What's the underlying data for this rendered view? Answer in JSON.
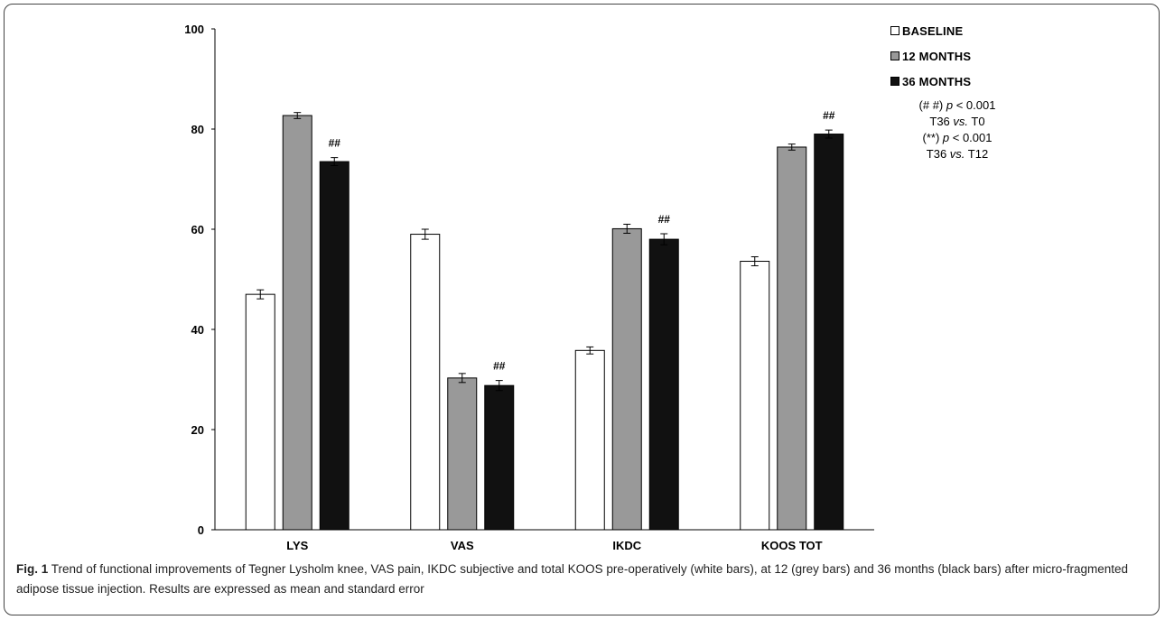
{
  "chart_data": {
    "type": "bar",
    "categories": [
      "LYS",
      "VAS",
      "IKDC",
      "KOOS TOT"
    ],
    "series": [
      {
        "name": "BASELINE",
        "color": "#ffffff",
        "values": [
          47.0,
          59.0,
          35.8,
          53.6
        ],
        "errors": [
          0.9,
          1.0,
          0.7,
          0.9
        ]
      },
      {
        "name": "12 MONTHS",
        "color": "#999999",
        "values": [
          82.7,
          30.3,
          60.1,
          76.4
        ],
        "errors": [
          0.6,
          0.9,
          0.9,
          0.6
        ]
      },
      {
        "name": "36 MONTHS",
        "color": "#111111",
        "values": [
          73.5,
          28.8,
          58.0,
          79.0
        ],
        "errors": [
          0.8,
          1.0,
          1.1,
          0.8
        ]
      }
    ],
    "significance": [
      {
        "category": "LYS",
        "series": "36 MONTHS",
        "label": "##"
      },
      {
        "category": "VAS",
        "series": "36 MONTHS",
        "label": "##"
      },
      {
        "category": "IKDC",
        "series": "36 MONTHS",
        "label": "##"
      },
      {
        "category": "KOOS TOT",
        "series": "36 MONTHS",
        "label": "##"
      }
    ],
    "ylim": [
      0,
      100
    ],
    "yticks": [
      0,
      20,
      40,
      60,
      80,
      100
    ],
    "grid": false,
    "legend_position": "top-right",
    "xlabel": "",
    "ylabel": ""
  },
  "legend": {
    "items": [
      {
        "label": "BASELINE",
        "color": "#ffffff"
      },
      {
        "label": "12 MONTHS",
        "color": "#999999"
      },
      {
        "label": "36 MONTHS",
        "color": "#111111"
      }
    ]
  },
  "notes": {
    "line1_prefix": "(# #) ",
    "line1_p": "p",
    "line1_suffix": " < 0.001",
    "line2_a": "T36 ",
    "line2_vs": "vs.",
    "line2_b": " T0",
    "line3_prefix": "(**) ",
    "line3_p": "p",
    "line3_suffix": " < 0.001",
    "line4_a": "T36 ",
    "line4_vs": "vs.",
    "line4_b": " T12"
  },
  "caption": {
    "label": "Fig. 1",
    "text": " Trend of functional improvements of Tegner Lysholm knee, VAS pain, IKDC subjective and total KOOS pre-operatively (white bars), at 12 (grey bars) and 36 months (black bars) after micro-fragmented adipose tissue injection. Results are expressed as mean and standard error"
  }
}
